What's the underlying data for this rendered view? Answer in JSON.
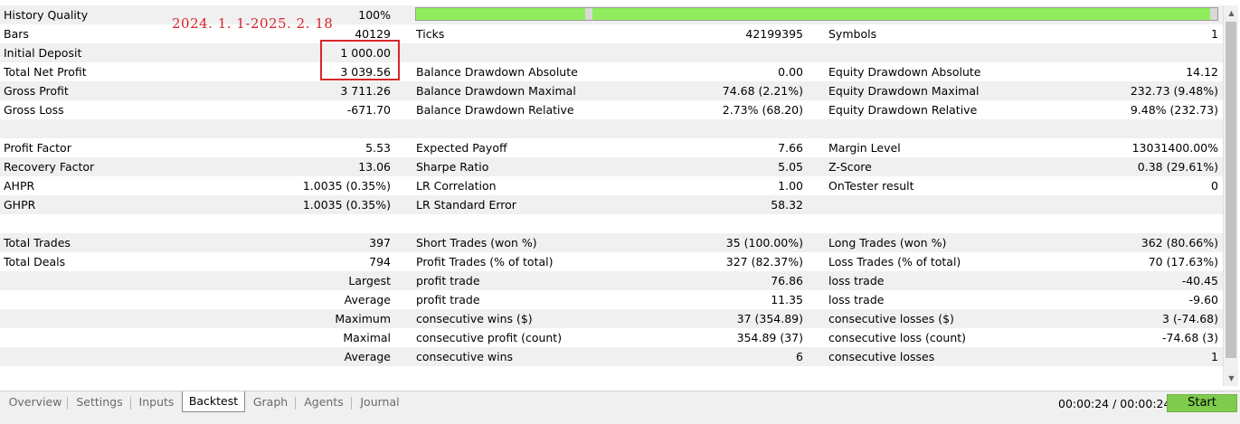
{
  "history_quality": {
    "label": "History Quality",
    "value": "100%",
    "bar_fill_percent": 100,
    "bar_color": "#90ee5e"
  },
  "annotation": {
    "text": "2024. 1. 1-2025. 2. 18",
    "color": "#d9252a"
  },
  "rows": [
    {
      "id": "r1",
      "c1l": "Bars",
      "c1v": "40129",
      "c2l": "Ticks",
      "c2v": "42199395",
      "c3l": "Symbols",
      "c3v": "1"
    },
    {
      "id": "r2",
      "c1l": "Initial Deposit",
      "c1v": "1 000.00",
      "c2l": "",
      "c2v": "",
      "c3l": "",
      "c3v": ""
    },
    {
      "id": "r3",
      "c1l": "Total Net Profit",
      "c1v": "3 039.56",
      "c2l": "Balance Drawdown Absolute",
      "c2v": "0.00",
      "c3l": "Equity Drawdown Absolute",
      "c3v": "14.12"
    },
    {
      "id": "r4",
      "c1l": "Gross Profit",
      "c1v": "3 711.26",
      "c2l": "Balance Drawdown Maximal",
      "c2v": "74.68 (2.21%)",
      "c3l": "Equity Drawdown Maximal",
      "c3v": "232.73 (9.48%)"
    },
    {
      "id": "r5",
      "c1l": "Gross Loss",
      "c1v": "-671.70",
      "c2l": "Balance Drawdown Relative",
      "c2v": "2.73% (68.20)",
      "c3l": "Equity Drawdown Relative",
      "c3v": "9.48% (232.73)"
    },
    {
      "id": "r6",
      "c1l": "",
      "c1v": "",
      "c2l": "",
      "c2v": "",
      "c3l": "",
      "c3v": ""
    },
    {
      "id": "r7",
      "c1l": "Profit Factor",
      "c1v": "5.53",
      "c2l": "Expected Payoff",
      "c2v": "7.66",
      "c3l": "Margin Level",
      "c3v": "13031400.00%"
    },
    {
      "id": "r8",
      "c1l": "Recovery Factor",
      "c1v": "13.06",
      "c2l": "Sharpe Ratio",
      "c2v": "5.05",
      "c3l": "Z-Score",
      "c3v": "0.38 (29.61%)"
    },
    {
      "id": "r9",
      "c1l": "AHPR",
      "c1v": "1.0035 (0.35%)",
      "c2l": "LR Correlation",
      "c2v": "1.00",
      "c3l": "OnTester result",
      "c3v": "0"
    },
    {
      "id": "r10",
      "c1l": "GHPR",
      "c1v": "1.0035 (0.35%)",
      "c2l": "LR Standard Error",
      "c2v": "58.32",
      "c3l": "",
      "c3v": ""
    },
    {
      "id": "r11",
      "c1l": "",
      "c1v": "",
      "c2l": "",
      "c2v": "",
      "c3l": "",
      "c3v": ""
    },
    {
      "id": "r12",
      "c1l": "Total Trades",
      "c1v": "397",
      "c2l": "Short Trades (won %)",
      "c2v": "35 (100.00%)",
      "c3l": "Long Trades (won %)",
      "c3v": "362 (80.66%)"
    },
    {
      "id": "r13",
      "c1l": "Total Deals",
      "c1v": "794",
      "c2l": "Profit Trades (% of total)",
      "c2v": "327 (82.37%)",
      "c3l": "Loss Trades (% of total)",
      "c3v": "70 (17.63%)"
    },
    {
      "id": "r14",
      "c1r": "Largest",
      "c2l": "profit trade",
      "c2v": "76.86",
      "c3l": "loss trade",
      "c3v": "-40.45"
    },
    {
      "id": "r15",
      "c1r": "Average",
      "c2l": "profit trade",
      "c2v": "11.35",
      "c3l": "loss trade",
      "c3v": "-9.60"
    },
    {
      "id": "r16",
      "c1r": "Maximum",
      "c2l": "consecutive wins ($)",
      "c2v": "37 (354.89)",
      "c3l": "consecutive losses ($)",
      "c3v": "3 (-74.68)"
    },
    {
      "id": "r17",
      "c1r": "Maximal",
      "c2l": "consecutive profit (count)",
      "c2v": "354.89 (37)",
      "c3l": "consecutive loss (count)",
      "c3v": "-74.68 (3)"
    },
    {
      "id": "r18",
      "c1r": "Average",
      "c2l": "consecutive wins",
      "c2v": "6",
      "c3l": "consecutive losses",
      "c3v": "1"
    },
    {
      "id": "r19",
      "c1l": "",
      "c1v": "",
      "c2l": "",
      "c2v": "",
      "c3l": "",
      "c3v": ""
    }
  ],
  "tabs": [
    {
      "label": "Overview",
      "active": false
    },
    {
      "label": "Settings",
      "active": false
    },
    {
      "label": "Inputs",
      "active": false
    },
    {
      "label": "Backtest",
      "active": true
    },
    {
      "label": "Graph",
      "active": false
    },
    {
      "label": "Agents",
      "active": false
    },
    {
      "label": "Journal",
      "active": false
    }
  ],
  "timer": "00:00:24 / 00:00:24",
  "start_button": {
    "label": "Start",
    "color": "#7ecb4d"
  },
  "icons": {
    "scroll_up": "scroll-up-arrow-icon",
    "scroll_down": "scroll-down-arrow-icon"
  }
}
